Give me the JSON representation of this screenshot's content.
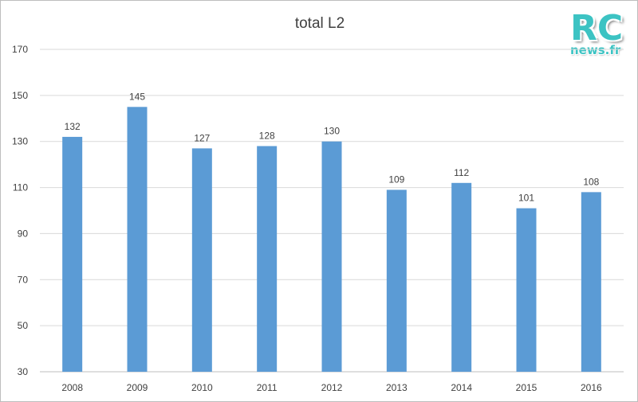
{
  "logo": {
    "main": "RC",
    "sub": "news.fr"
  },
  "colors": {
    "bar": "#5b9bd5",
    "grid": "#d9d9d9",
    "text": "#404040"
  },
  "chart_data": {
    "type": "bar",
    "title": "total L2",
    "xlabel": "",
    "ylabel": "",
    "categories": [
      "2008",
      "2009",
      "2010",
      "2011",
      "2012",
      "2013",
      "2014",
      "2015",
      "2016"
    ],
    "values": [
      132,
      145,
      127,
      128,
      130,
      109,
      112,
      101,
      108
    ],
    "data_labels": [
      "132",
      "145",
      "127",
      "128",
      "130",
      "109",
      "112",
      "101",
      "108"
    ],
    "ylim": [
      30,
      170
    ],
    "yticks": [
      30,
      50,
      70,
      90,
      110,
      130,
      150,
      170
    ],
    "grid": true,
    "legend": "none"
  }
}
